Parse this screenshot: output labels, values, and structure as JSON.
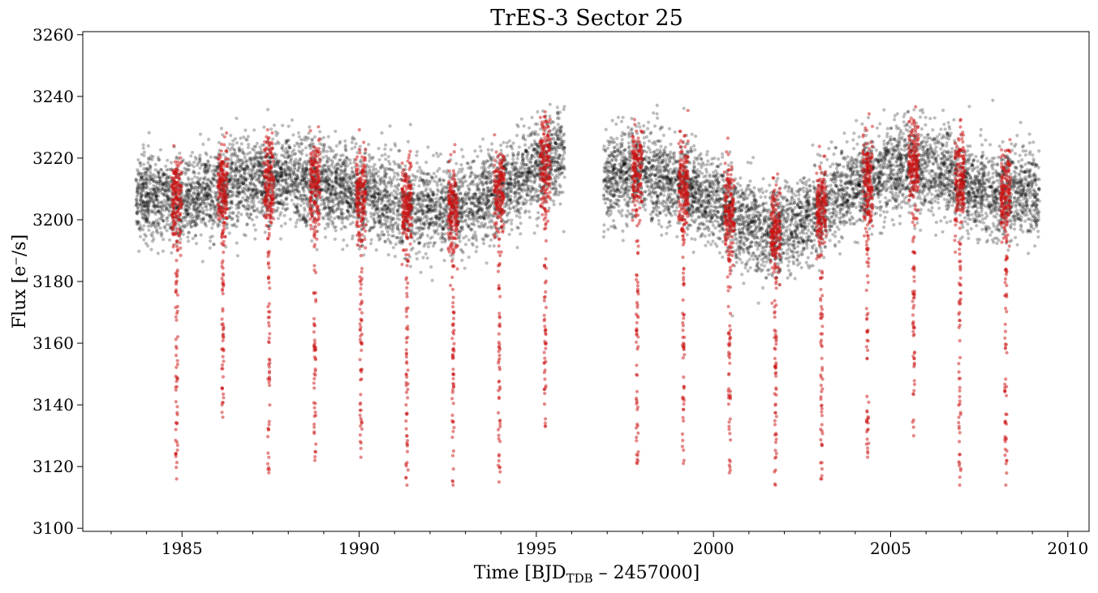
{
  "chart_data": {
    "type": "scatter",
    "title": "TrES-3 Sector 25",
    "xlabel": {
      "main": "Time [BJD",
      "subscript": "TDB",
      "rest": " – 2457000]"
    },
    "ylabel": "Flux [e⁻/s]",
    "xlim": [
      1982.2,
      2010.6
    ],
    "ylim": [
      3099,
      3261
    ],
    "xticks": [
      1985,
      1990,
      1995,
      2000,
      2005,
      2010
    ],
    "xtick_labels": [
      "1985",
      "1990",
      "1995",
      "2000",
      "2005",
      "2010"
    ],
    "xminor_step": 1,
    "yticks": [
      3100,
      3120,
      3140,
      3160,
      3180,
      3200,
      3220,
      3240,
      3260
    ],
    "ytick_labels": [
      "3100",
      "3120",
      "3140",
      "3160",
      "3180",
      "3200",
      "3220",
      "3240",
      "3260"
    ],
    "grid": false,
    "legend": "none",
    "colors": {
      "out_of_transit": "#000000",
      "in_transit": "#cc1111"
    },
    "series": [
      {
        "segments": [
          {
            "x_range": [
              1983.7,
              1995.8
            ],
            "baseline": [
              [
                1983.7,
                3208
              ],
              [
                1985.0,
                3206
              ],
              [
                1986.5,
                3212
              ],
              [
                1988.0,
                3213
              ],
              [
                1989.5,
                3210
              ],
              [
                1991.0,
                3205
              ],
              [
                1992.5,
                3203
              ],
              [
                1993.8,
                3208
              ],
              [
                1994.8,
                3215
              ],
              [
                1995.8,
                3222
              ]
            ]
          },
          {
            "x_range": [
              1996.9,
              2009.2
            ],
            "baseline": [
              [
                1996.9,
                3212
              ],
              [
                1997.8,
                3216
              ],
              [
                1999.0,
                3212
              ],
              [
                2000.2,
                3205
              ],
              [
                2001.5,
                3195
              ],
              [
                2002.3,
                3198
              ],
              [
                2003.2,
                3205
              ],
              [
                2004.3,
                3213
              ],
              [
                2005.3,
                3218
              ],
              [
                2006.2,
                3217
              ],
              [
                2007.2,
                3210
              ],
              [
                2008.3,
                3208
              ],
              [
                2009.2,
                3209
              ]
            ]
          }
        ],
        "scatter_sd": 7
      },
      {
        "transits": [
          {
            "t": 1984.85,
            "min": 3116
          },
          {
            "t": 1986.15,
            "min": 3136
          },
          {
            "t": 1987.45,
            "min": 3118
          },
          {
            "t": 1988.75,
            "min": 3122
          },
          {
            "t": 1990.05,
            "min": 3123
          },
          {
            "t": 1991.35,
            "min": 3114
          },
          {
            "t": 1992.65,
            "min": 3114
          },
          {
            "t": 1993.95,
            "min": 3115
          },
          {
            "t": 1995.25,
            "min": 3133
          },
          {
            "t": 1997.85,
            "min": 3121
          },
          {
            "t": 1999.15,
            "min": 3121
          },
          {
            "t": 2000.45,
            "min": 3118
          },
          {
            "t": 2001.75,
            "min": 3114
          },
          {
            "t": 2003.05,
            "min": 3116
          },
          {
            "t": 2004.35,
            "min": 3123
          },
          {
            "t": 2005.65,
            "min": 3130
          },
          {
            "t": 2006.95,
            "min": 3114
          },
          {
            "t": 2008.25,
            "min": 3114
          }
        ]
      }
    ]
  }
}
